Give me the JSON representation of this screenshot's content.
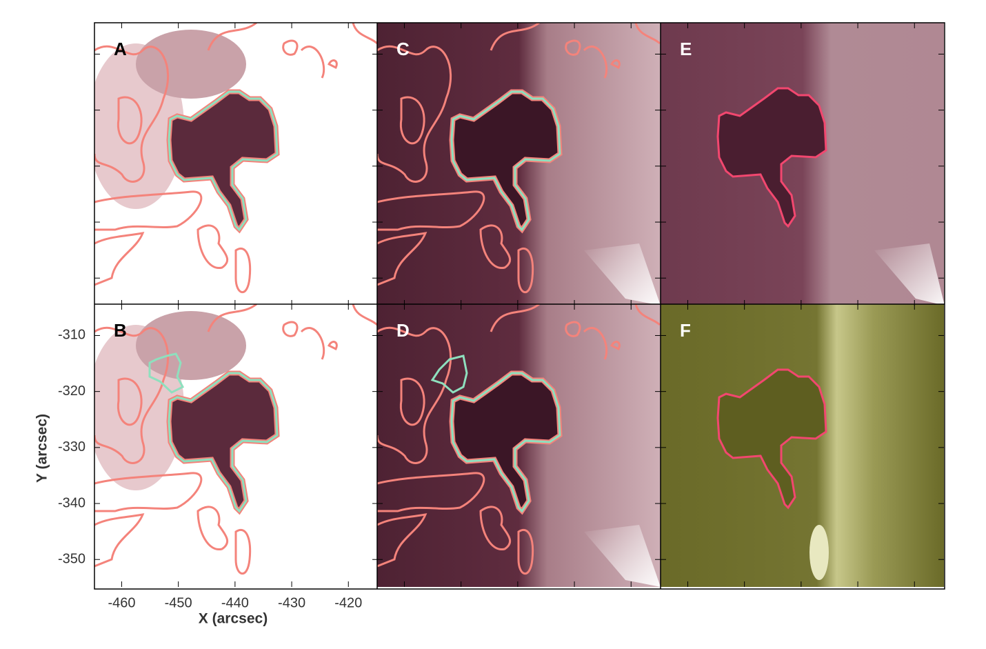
{
  "chart_data": {
    "type": "image-grid",
    "panels": [
      "A",
      "B",
      "C",
      "D",
      "E",
      "F"
    ],
    "x_label": "X (arcsec)",
    "y_label": "Y (arcsec)",
    "xlim": [
      -464.8,
      -414.8
    ],
    "xticks": [
      -460,
      -450,
      -440,
      -430,
      -420
    ],
    "ylim": [
      -354.9,
      -304.4
    ],
    "yticks": [
      -310,
      -320,
      -330,
      -340,
      -350
    ]
  }
}
